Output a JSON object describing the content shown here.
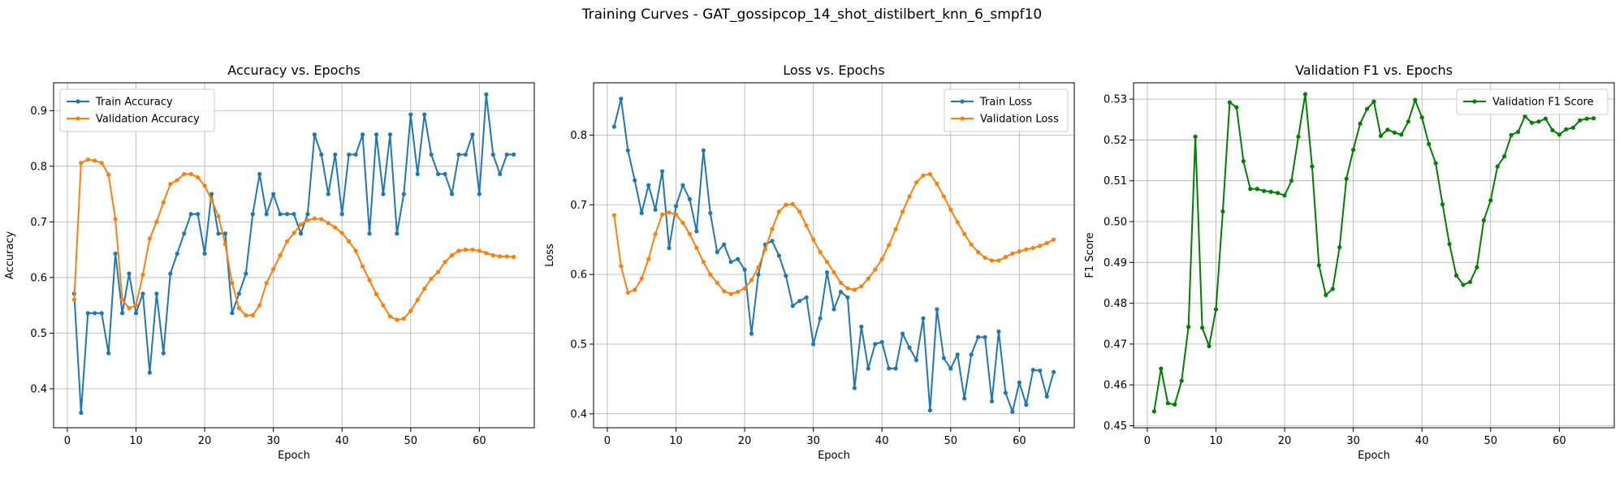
{
  "figure": {
    "suptitle": "Training Curves - GAT_gossipcop_14_shot_distilbert_knn_6_smpf10"
  },
  "chart_data": [
    {
      "type": "line",
      "title": "Accuracy vs. Epochs",
      "xlabel": "Epoch",
      "ylabel": "Accuracy",
      "xlim": [
        -2,
        68
      ],
      "ylim": [
        0.33,
        0.95
      ],
      "xticks": [
        0,
        10,
        20,
        30,
        40,
        50,
        60
      ],
      "yticks": [
        0.4,
        0.5,
        0.6,
        0.7,
        0.8,
        0.9
      ],
      "ytick_labels": [
        "0.4",
        "0.5",
        "0.6",
        "0.7",
        "0.8",
        "0.9"
      ],
      "grid": true,
      "legend": "upper-left",
      "series": [
        {
          "name": "Train Accuracy",
          "color": "#1f77b4",
          "x_start": 1,
          "values": [
            0.571,
            0.357,
            0.536,
            0.536,
            0.536,
            0.464,
            0.643,
            0.536,
            0.607,
            0.536,
            0.571,
            0.429,
            0.571,
            0.464,
            0.607,
            0.643,
            0.679,
            0.714,
            0.714,
            0.643,
            0.75,
            0.679,
            0.679,
            0.536,
            0.571,
            0.607,
            0.714,
            0.786,
            0.714,
            0.75,
            0.714,
            0.714,
            0.714,
            0.679,
            0.714,
            0.857,
            0.821,
            0.75,
            0.821,
            0.714,
            0.821,
            0.821,
            0.857,
            0.679,
            0.857,
            0.75,
            0.857,
            0.679,
            0.75,
            0.893,
            0.786,
            0.893,
            0.821,
            0.786,
            0.786,
            0.75,
            0.821,
            0.821,
            0.857,
            0.75,
            0.929,
            0.821,
            0.786,
            0.821,
            0.821
          ]
        },
        {
          "name": "Validation Accuracy",
          "color": "#ff7f0e",
          "x_start": 1,
          "values": [
            0.56,
            0.806,
            0.812,
            0.81,
            0.806,
            0.785,
            0.705,
            0.56,
            0.545,
            0.55,
            0.605,
            0.67,
            0.7,
            0.735,
            0.768,
            0.775,
            0.786,
            0.786,
            0.78,
            0.765,
            0.74,
            0.71,
            0.66,
            0.59,
            0.545,
            0.532,
            0.532,
            0.55,
            0.59,
            0.615,
            0.64,
            0.665,
            0.68,
            0.695,
            0.703,
            0.706,
            0.705,
            0.698,
            0.69,
            0.68,
            0.665,
            0.648,
            0.62,
            0.595,
            0.57,
            0.55,
            0.53,
            0.524,
            0.526,
            0.54,
            0.56,
            0.58,
            0.598,
            0.61,
            0.628,
            0.64,
            0.648,
            0.65,
            0.65,
            0.648,
            0.644,
            0.64,
            0.638,
            0.638,
            0.637
          ]
        }
      ]
    },
    {
      "type": "line",
      "title": "Loss vs. Epochs",
      "xlabel": "Epoch",
      "ylabel": "Loss",
      "xlim": [
        -2,
        68
      ],
      "ylim": [
        0.38,
        0.875
      ],
      "xticks": [
        0,
        10,
        20,
        30,
        40,
        50,
        60
      ],
      "yticks": [
        0.4,
        0.5,
        0.6,
        0.7,
        0.8
      ],
      "ytick_labels": [
        "0.4",
        "0.5",
        "0.6",
        "0.7",
        "0.8"
      ],
      "grid": true,
      "legend": "upper-right",
      "series": [
        {
          "name": "Train Loss",
          "color": "#1f77b4",
          "x_start": 1,
          "values": [
            0.812,
            0.852,
            0.778,
            0.735,
            0.688,
            0.728,
            0.693,
            0.748,
            0.638,
            0.698,
            0.728,
            0.708,
            0.662,
            0.778,
            0.688,
            0.632,
            0.643,
            0.618,
            0.622,
            0.607,
            0.515,
            0.6,
            0.643,
            0.648,
            0.627,
            0.598,
            0.555,
            0.562,
            0.567,
            0.5,
            0.537,
            0.603,
            0.55,
            0.575,
            0.567,
            0.437,
            0.525,
            0.465,
            0.5,
            0.503,
            0.465,
            0.465,
            0.515,
            0.495,
            0.477,
            0.537,
            0.405,
            0.55,
            0.48,
            0.465,
            0.485,
            0.422,
            0.485,
            0.51,
            0.51,
            0.418,
            0.518,
            0.43,
            0.403,
            0.445,
            0.413,
            0.463,
            0.462,
            0.425,
            0.46
          ]
        },
        {
          "name": "Validation Loss",
          "color": "#ff7f0e",
          "x_start": 1,
          "values": [
            0.685,
            0.612,
            0.574,
            0.578,
            0.594,
            0.622,
            0.658,
            0.686,
            0.689,
            0.686,
            0.674,
            0.658,
            0.638,
            0.618,
            0.6,
            0.588,
            0.576,
            0.572,
            0.575,
            0.58,
            0.592,
            0.61,
            0.636,
            0.665,
            0.69,
            0.7,
            0.701,
            0.69,
            0.67,
            0.65,
            0.632,
            0.618,
            0.603,
            0.588,
            0.58,
            0.578,
            0.583,
            0.594,
            0.607,
            0.622,
            0.642,
            0.665,
            0.69,
            0.712,
            0.732,
            0.742,
            0.744,
            0.73,
            0.712,
            0.693,
            0.675,
            0.658,
            0.643,
            0.632,
            0.624,
            0.62,
            0.62,
            0.625,
            0.63,
            0.633,
            0.636,
            0.638,
            0.641,
            0.645,
            0.65
          ]
        }
      ]
    },
    {
      "type": "line",
      "title": "Validation F1 vs. Epochs",
      "xlabel": "Epoch",
      "ylabel": "F1 Score",
      "xlim": [
        -2,
        68
      ],
      "ylim": [
        0.4495,
        0.534
      ],
      "xticks": [
        0,
        10,
        20,
        30,
        40,
        50,
        60
      ],
      "yticks": [
        0.45,
        0.46,
        0.47,
        0.48,
        0.49,
        0.5,
        0.51,
        0.52,
        0.53
      ],
      "ytick_labels": [
        "0.45",
        "0.46",
        "0.47",
        "0.48",
        "0.49",
        "0.50",
        "0.51",
        "0.52",
        "0.53"
      ],
      "grid": true,
      "legend": "upper-right",
      "series": [
        {
          "name": "Validation F1 Score",
          "color": "#008000",
          "x_start": 1,
          "values": [
            0.4535,
            0.464,
            0.4555,
            0.4552,
            0.461,
            0.4742,
            0.5208,
            0.474,
            0.4695,
            0.4785,
            0.5025,
            0.5292,
            0.528,
            0.5148,
            0.508,
            0.508,
            0.5075,
            0.5073,
            0.507,
            0.5064,
            0.51,
            0.5208,
            0.5312,
            0.5135,
            0.4893,
            0.482,
            0.4835,
            0.4937,
            0.5105,
            0.5176,
            0.524,
            0.5276,
            0.5294,
            0.521,
            0.5225,
            0.5218,
            0.5213,
            0.5245,
            0.5298,
            0.5255,
            0.519,
            0.5143,
            0.5042,
            0.4945,
            0.4868,
            0.4845,
            0.4852,
            0.4888,
            0.5003,
            0.5052,
            0.5135,
            0.516,
            0.5212,
            0.522,
            0.5258,
            0.5242,
            0.5245,
            0.5252,
            0.5224,
            0.5213,
            0.5226,
            0.523,
            0.5248,
            0.5252,
            0.5253
          ]
        }
      ]
    }
  ]
}
